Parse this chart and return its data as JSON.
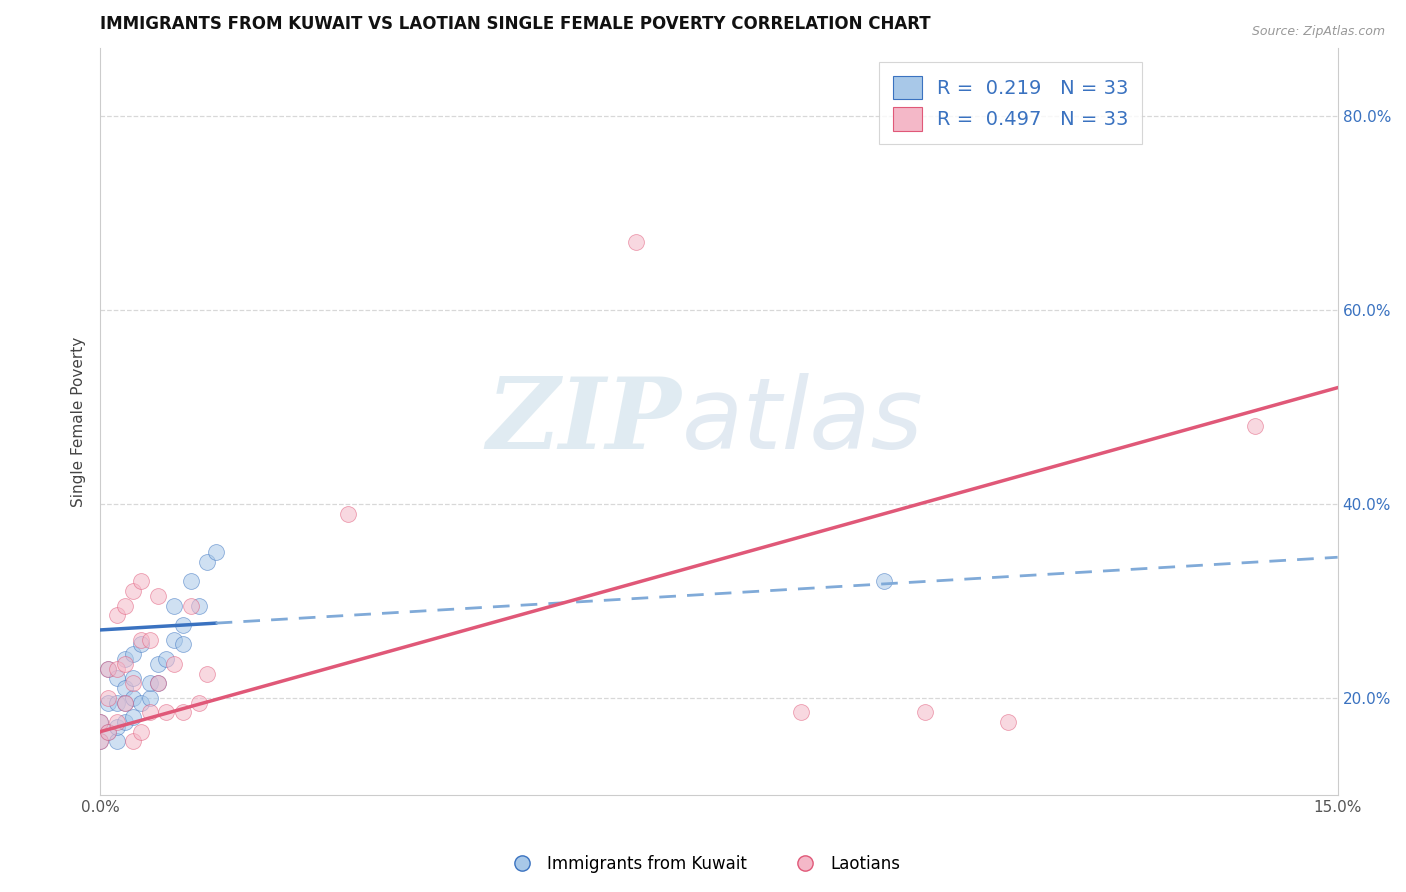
{
  "title": "IMMIGRANTS FROM KUWAIT VS LAOTIAN SINGLE FEMALE POVERTY CORRELATION CHART",
  "source": "Source: ZipAtlas.com",
  "ylabel": "Single Female Poverty",
  "xlim": [
    0.0,
    0.15
  ],
  "ylim": [
    0.1,
    0.87
  ],
  "x_tick_labels": [
    "0.0%",
    "15.0%"
  ],
  "y_tick_labels_right": [
    "20.0%",
    "40.0%",
    "60.0%",
    "80.0%"
  ],
  "y_ticks_right_vals": [
    0.2,
    0.4,
    0.6,
    0.8
  ],
  "watermark_zip": "ZIP",
  "watermark_atlas": "atlas",
  "color_blue": "#a8c8e8",
  "color_pink": "#f4b8c8",
  "line_color_blue": "#3a72c0",
  "line_color_pink": "#e05878",
  "r_blue": 0.219,
  "r_pink": 0.497,
  "n": 33,
  "blue_scatter_x": [
    0.0,
    0.0,
    0.001,
    0.001,
    0.001,
    0.002,
    0.002,
    0.002,
    0.002,
    0.003,
    0.003,
    0.003,
    0.003,
    0.004,
    0.004,
    0.004,
    0.004,
    0.005,
    0.005,
    0.006,
    0.006,
    0.007,
    0.007,
    0.008,
    0.009,
    0.009,
    0.01,
    0.01,
    0.011,
    0.012,
    0.013,
    0.014,
    0.095
  ],
  "blue_scatter_y": [
    0.155,
    0.175,
    0.165,
    0.195,
    0.23,
    0.155,
    0.17,
    0.195,
    0.22,
    0.175,
    0.195,
    0.21,
    0.24,
    0.18,
    0.2,
    0.22,
    0.245,
    0.195,
    0.255,
    0.2,
    0.215,
    0.215,
    0.235,
    0.24,
    0.26,
    0.295,
    0.255,
    0.275,
    0.32,
    0.295,
    0.34,
    0.35,
    0.32
  ],
  "pink_scatter_x": [
    0.0,
    0.0,
    0.001,
    0.001,
    0.001,
    0.002,
    0.002,
    0.002,
    0.003,
    0.003,
    0.003,
    0.004,
    0.004,
    0.004,
    0.005,
    0.005,
    0.005,
    0.006,
    0.006,
    0.007,
    0.007,
    0.008,
    0.009,
    0.01,
    0.011,
    0.012,
    0.013,
    0.03,
    0.065,
    0.085,
    0.1,
    0.11,
    0.14
  ],
  "pink_scatter_y": [
    0.155,
    0.175,
    0.165,
    0.2,
    0.23,
    0.175,
    0.23,
    0.285,
    0.195,
    0.235,
    0.295,
    0.155,
    0.215,
    0.31,
    0.165,
    0.26,
    0.32,
    0.185,
    0.26,
    0.215,
    0.305,
    0.185,
    0.235,
    0.185,
    0.295,
    0.195,
    0.225,
    0.39,
    0.67,
    0.185,
    0.185,
    0.175,
    0.48
  ],
  "grid_color": "#d8d8d8",
  "background_color": "#ffffff",
  "title_fontsize": 12,
  "axis_label_fontsize": 11,
  "tick_fontsize": 11,
  "scatter_size": 130,
  "scatter_alpha": 0.55,
  "blue_line_solid_end": 0.014,
  "dashed_line_color": "#80aad8",
  "blue_line_y0": 0.27,
  "blue_line_y1": 0.345,
  "pink_line_y0": 0.165,
  "pink_line_y1": 0.52
}
